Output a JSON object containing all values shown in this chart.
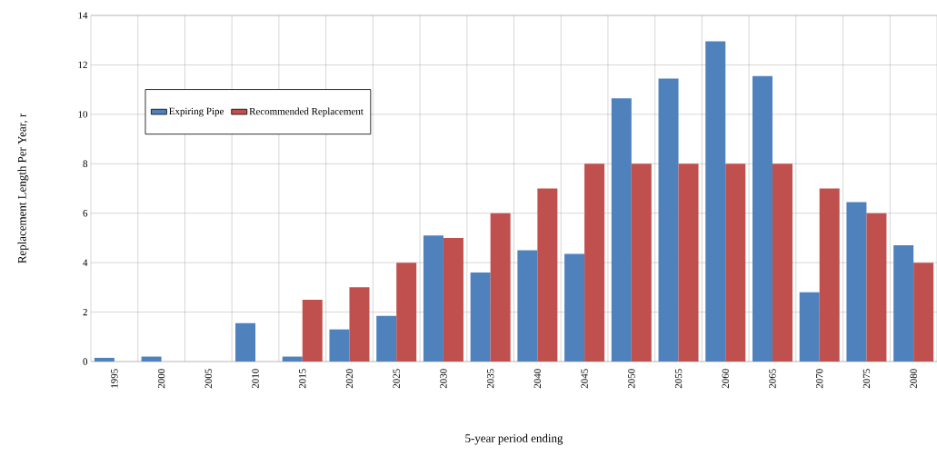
{
  "chart_data": {
    "type": "bar",
    "xlabel": "5-year period ending",
    "ylabel": "Replacement Length Per Year, r",
    "categories": [
      "1995",
      "2000",
      "2005",
      "2010",
      "2015",
      "2020",
      "2025",
      "2030",
      "2035",
      "2040",
      "2045",
      "2050",
      "2055",
      "2060",
      "2065",
      "2070",
      "2075",
      "2080"
    ],
    "series": [
      {
        "name": "Expiring Pipe",
        "color": "#4f81bd",
        "values": [
          0.15,
          0.2,
          0,
          1.55,
          0.2,
          1.3,
          1.85,
          5.1,
          3.6,
          4.5,
          4.35,
          10.65,
          11.45,
          12.95,
          11.55,
          2.8,
          6.45,
          4.7
        ]
      },
      {
        "name": "Recommended Replacement",
        "color": "#c0504d",
        "values": [
          0,
          0,
          0,
          0,
          2.5,
          3,
          4,
          5,
          6,
          7,
          8,
          8,
          8,
          8,
          8,
          7,
          6,
          4
        ]
      }
    ],
    "ylim": [
      0,
      14
    ],
    "yticks": [
      0,
      2,
      4,
      6,
      8,
      10,
      12,
      14
    ],
    "grid": true,
    "legend": "top left"
  }
}
